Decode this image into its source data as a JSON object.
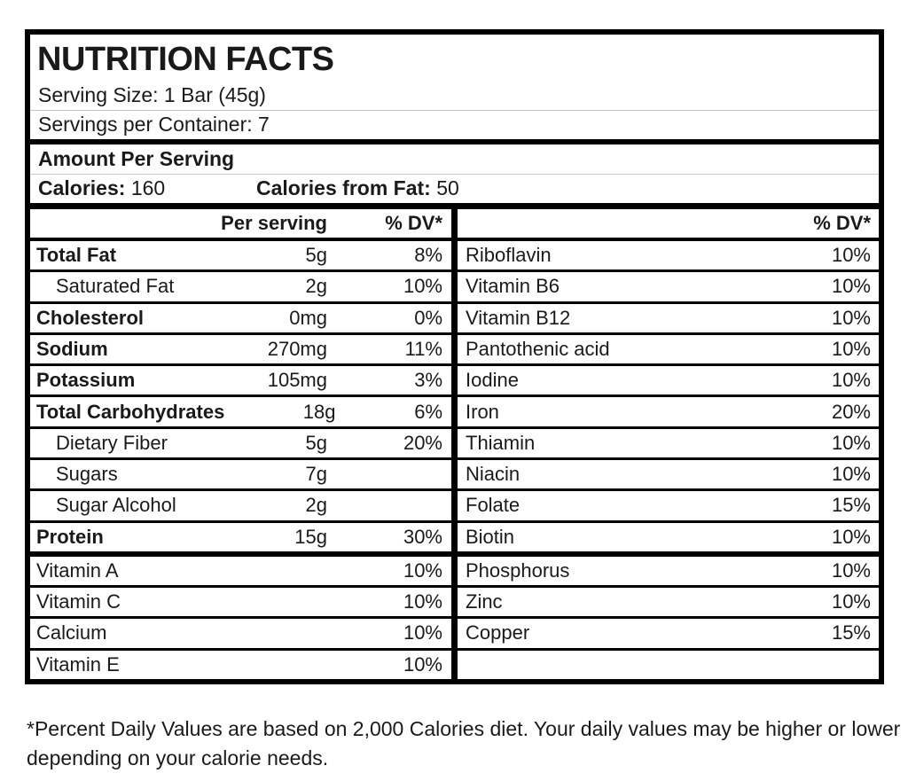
{
  "label": {
    "title": "NUTRITION FACTS",
    "serving_size": "Serving Size: 1 Bar (45g)",
    "servings_per_container": "Servings per Container: 7",
    "amount_per_serving": "Amount Per Serving",
    "calories_label": "Calories:",
    "calories_value": "160",
    "calories_from_fat_label": "Calories from Fat:",
    "calories_from_fat_value": "50"
  },
  "left_table": {
    "header_amount": "Per serving",
    "header_dv": "% DV*",
    "rows": [
      {
        "name": "Total Fat",
        "amount": "5g",
        "dv": "8%"
      },
      {
        "name": "Saturated Fat",
        "amount": "2g",
        "dv": "10%"
      },
      {
        "name": "Cholesterol",
        "amount": "0mg",
        "dv": "0%"
      },
      {
        "name": "Sodium",
        "amount": "270mg",
        "dv": "11%"
      },
      {
        "name": "Potassium",
        "amount": "105mg",
        "dv": "3%"
      },
      {
        "name": "Total Carbohydrates",
        "amount": "18g",
        "dv": "6%"
      },
      {
        "name": "Dietary Fiber",
        "amount": "5g",
        "dv": "20%"
      },
      {
        "name": "Sugars",
        "amount": "7g",
        "dv": ""
      },
      {
        "name": "Sugar Alcohol",
        "amount": "2g",
        "dv": ""
      },
      {
        "name": "Protein",
        "amount": "15g",
        "dv": "30%"
      },
      {
        "name": "Vitamin A",
        "amount": "",
        "dv": "10%"
      },
      {
        "name": "Vitamin C",
        "amount": "",
        "dv": "10%"
      },
      {
        "name": "Calcium",
        "amount": "",
        "dv": "10%"
      },
      {
        "name": "Vitamin E",
        "amount": "",
        "dv": "10%"
      }
    ]
  },
  "right_table": {
    "header_dv": "% DV*",
    "rows": [
      {
        "name": "Riboflavin",
        "dv": "10%"
      },
      {
        "name": "Vitamin B6",
        "dv": "10%"
      },
      {
        "name": "Vitamin B12",
        "dv": "10%"
      },
      {
        "name": "Pantothenic acid",
        "dv": "10%"
      },
      {
        "name": "Iodine",
        "dv": "10%"
      },
      {
        "name": "Iron",
        "dv": "20%"
      },
      {
        "name": "Thiamin",
        "dv": "10%"
      },
      {
        "name": "Niacin",
        "dv": "10%"
      },
      {
        "name": "Folate",
        "dv": "15%"
      },
      {
        "name": "Biotin",
        "dv": "10%"
      },
      {
        "name": "Phosphorus",
        "dv": "10%"
      },
      {
        "name": "Zinc",
        "dv": "10%"
      },
      {
        "name": "Copper",
        "dv": "15%"
      },
      {
        "name": "",
        "dv": ""
      }
    ]
  },
  "footnote": "*Percent Daily Values are based on 2,000 Calories diet. Your daily values may be higher or lower depending on your calorie needs.",
  "colors": {
    "border": "#000000",
    "text": "#1a1a1a",
    "background": "#ffffff",
    "faint_rule": "#c4c4c4"
  }
}
